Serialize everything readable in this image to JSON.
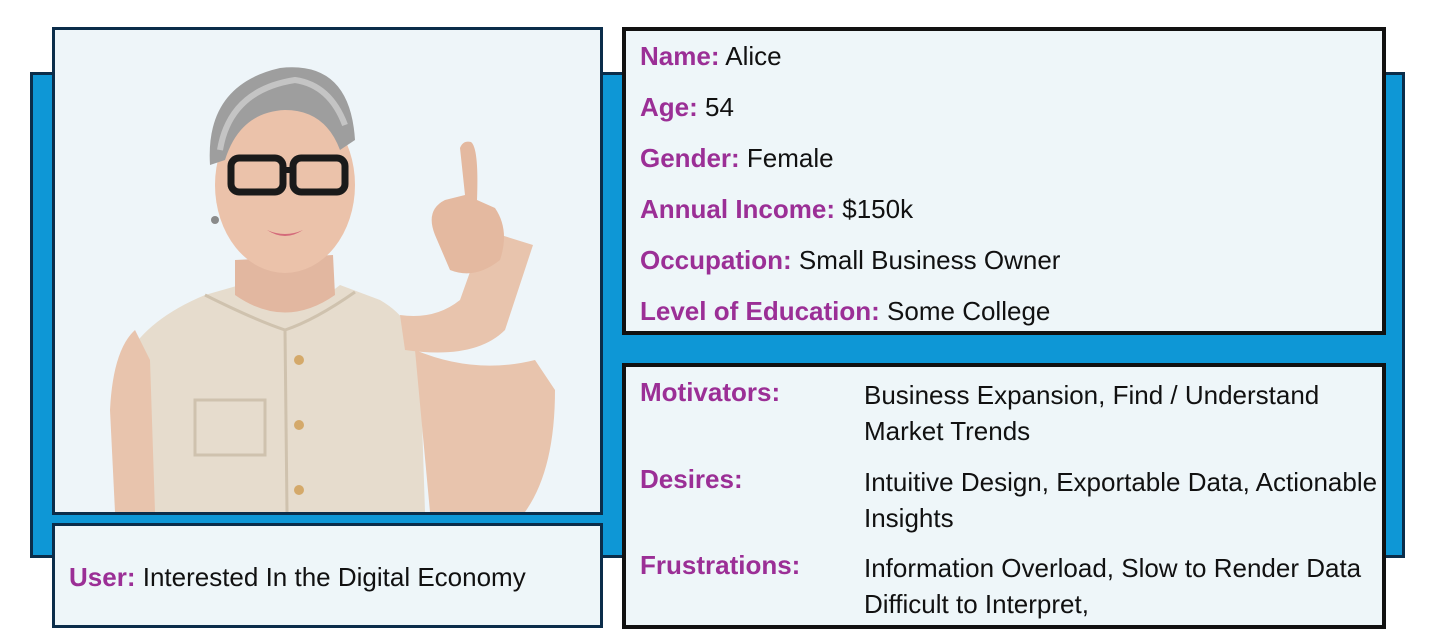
{
  "persona": {
    "name_label": "Name:",
    "name_value": "Alice",
    "age_label": "Age:",
    "age_value": "54",
    "gender_label": "Gender:",
    "gender_value": "Female",
    "income_label": "Annual Income:",
    "income_value": "$150k",
    "occupation_label": "Occupation:",
    "occupation_value": "Small Business Owner",
    "education_label": "Level of Education:",
    "education_value": "Some College"
  },
  "traits": {
    "motivators_label": "Motivators:",
    "motivators_value": "Business Expansion, Find / Understand Market Trends",
    "desires_label": "Desires:",
    "desires_value": "Intuitive Design, Exportable Data, Actionable Insights",
    "frustrations_label": "Frustrations:",
    "frustrations_value": "Information Overload, Slow to Render Data Difficult to Interpret,"
  },
  "user": {
    "label": "User:",
    "value": "Interested In the Digital Economy"
  },
  "colors": {
    "band": "#0e97d6",
    "label_accent": "#9b2f96",
    "panel_bg": "#eef6f9"
  },
  "icons": {
    "portrait": "persona-photo"
  }
}
